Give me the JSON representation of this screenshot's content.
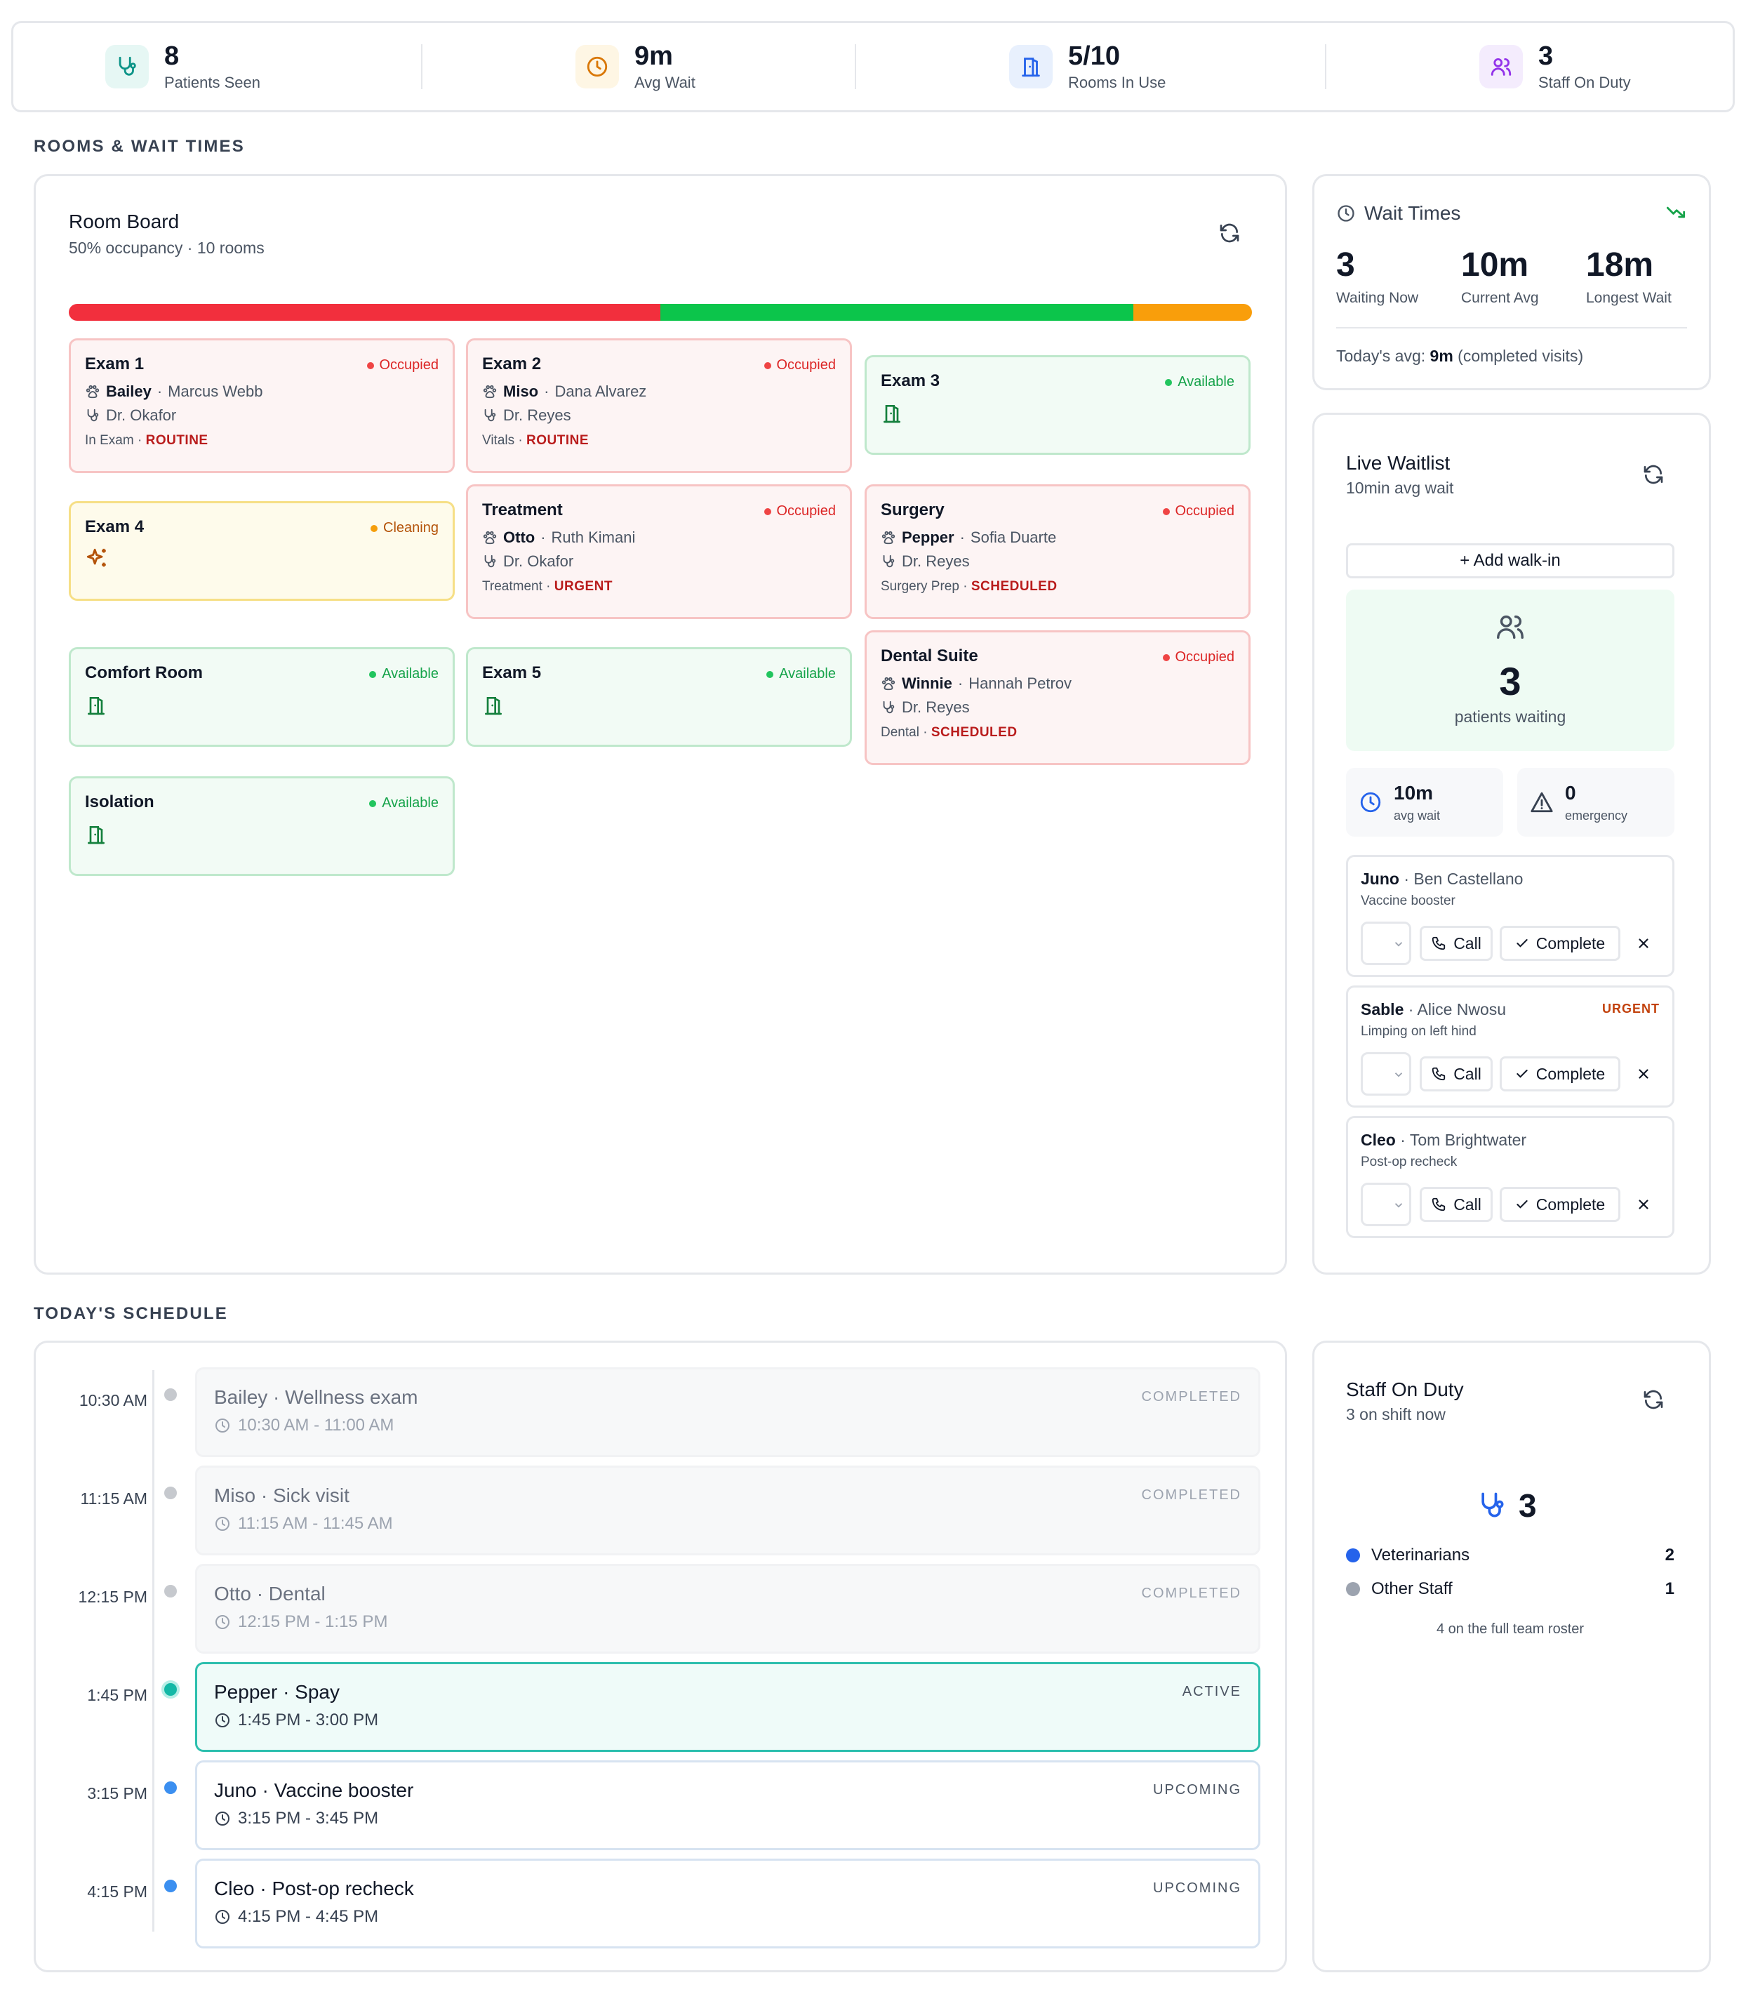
{
  "stats": [
    {
      "value": "8",
      "label": "Patients Seen",
      "icon": "stethoscope-icon",
      "color": "#0d9488",
      "bg": "#e6f7f4"
    },
    {
      "value": "9m",
      "label": "Avg Wait",
      "icon": "clock-icon",
      "color": "#d97706",
      "bg": "#fef6e4"
    },
    {
      "value": "5/10",
      "label": "Rooms In Use",
      "icon": "door-icon",
      "color": "#2563eb",
      "bg": "#e8f0fd"
    },
    {
      "value": "3",
      "label": "Staff On Duty",
      "icon": "users-icon",
      "color": "#9333ea",
      "bg": "#f4ecfd"
    }
  ],
  "sections": {
    "rooms": "ROOMS & WAIT TIMES",
    "schedule": "TODAY'S SCHEDULE"
  },
  "room_board": {
    "title": "Room Board",
    "subtitle": "50% occupancy · 10 rooms",
    "occupancy": {
      "occupied": 5,
      "available": 4,
      "cleaning": 1
    },
    "colors": {
      "occupied": "#f22f3d",
      "available": "#0cc54b",
      "cleaning": "#f99e0b"
    },
    "rooms": [
      {
        "name": "Exam 1",
        "status": "Occupied",
        "pet": "Bailey",
        "owner": "Marcus Webb",
        "vet": "Dr. Okafor",
        "stage": "In Exam",
        "priority": "ROUTINE"
      },
      {
        "name": "Exam 2",
        "status": "Occupied",
        "pet": "Miso",
        "owner": "Dana Alvarez",
        "vet": "Dr. Reyes",
        "stage": "Vitals",
        "priority": "ROUTINE"
      },
      {
        "name": "Exam 3",
        "status": "Available"
      },
      {
        "name": "Exam 4",
        "status": "Cleaning"
      },
      {
        "name": "Treatment",
        "status": "Occupied",
        "pet": "Otto",
        "owner": "Ruth Kimani",
        "vet": "Dr. Okafor",
        "stage": "Treatment",
        "priority": "URGENT"
      },
      {
        "name": "Surgery",
        "status": "Occupied",
        "pet": "Pepper",
        "owner": "Sofia Duarte",
        "vet": "Dr. Reyes",
        "stage": "Surgery Prep",
        "priority": "SCHEDULED"
      },
      {
        "name": "Comfort Room",
        "status": "Available"
      },
      {
        "name": "Exam 5",
        "status": "Available"
      },
      {
        "name": "Dental Suite",
        "status": "Occupied",
        "pet": "Winnie",
        "owner": "Hannah Petrov",
        "vet": "Dr. Reyes",
        "stage": "Dental",
        "priority": "SCHEDULED"
      },
      {
        "name": "Isolation",
        "status": "Available"
      }
    ]
  },
  "wait_times": {
    "title": "Wait Times",
    "metrics": [
      {
        "value": "3",
        "label": "Waiting Now"
      },
      {
        "value": "10m",
        "label": "Current Avg"
      },
      {
        "value": "18m",
        "label": "Longest Wait"
      }
    ],
    "footer_prefix": "Today's avg:",
    "footer_value": "9m",
    "footer_suffix": "(completed visits)"
  },
  "waitlist": {
    "title": "Live Waitlist",
    "subtitle": "10min avg wait",
    "add_label": "+ Add walk-in",
    "waiting_count": "3",
    "waiting_label": "patients waiting",
    "avg_value": "10m",
    "avg_label": "avg wait",
    "emergency_value": "0",
    "emergency_label": "emergency",
    "call_label": "Call",
    "complete_label": "Complete",
    "items": [
      {
        "pet": "Juno",
        "owner": "Ben Castellano",
        "reason": "Vaccine booster",
        "badge": ""
      },
      {
        "pet": "Sable",
        "owner": "Alice Nwosu",
        "reason": "Limping on left hind",
        "badge": "URGENT"
      },
      {
        "pet": "Cleo",
        "owner": "Tom Brightwater",
        "reason": "Post-op recheck",
        "badge": ""
      }
    ]
  },
  "schedule": [
    {
      "time": "10:30 AM",
      "title": "Bailey · Wellness exam",
      "hours": "10:30 AM - 11:00 AM",
      "status": "COMPLETED"
    },
    {
      "time": "11:15 AM",
      "title": "Miso · Sick visit",
      "hours": "11:15 AM - 11:45 AM",
      "status": "COMPLETED"
    },
    {
      "time": "12:15 PM",
      "title": "Otto · Dental",
      "hours": "12:15 PM - 1:15 PM",
      "status": "COMPLETED"
    },
    {
      "time": "1:45 PM",
      "title": "Pepper · Spay",
      "hours": "1:45 PM - 3:00 PM",
      "status": "ACTIVE"
    },
    {
      "time": "3:15 PM",
      "title": "Juno · Vaccine booster",
      "hours": "3:15 PM - 3:45 PM",
      "status": "UPCOMING"
    },
    {
      "time": "4:15 PM",
      "title": "Cleo · Post-op recheck",
      "hours": "4:15 PM - 4:45 PM",
      "status": "UPCOMING"
    }
  ],
  "staff": {
    "title": "Staff On Duty",
    "subtitle": "3 on shift now",
    "total": "3",
    "groups": [
      {
        "label": "Veterinarians",
        "count": "2",
        "color": "#2563eb"
      },
      {
        "label": "Other Staff",
        "count": "1",
        "color": "#9ca3af"
      }
    ],
    "footer": "4 on the full team roster"
  }
}
